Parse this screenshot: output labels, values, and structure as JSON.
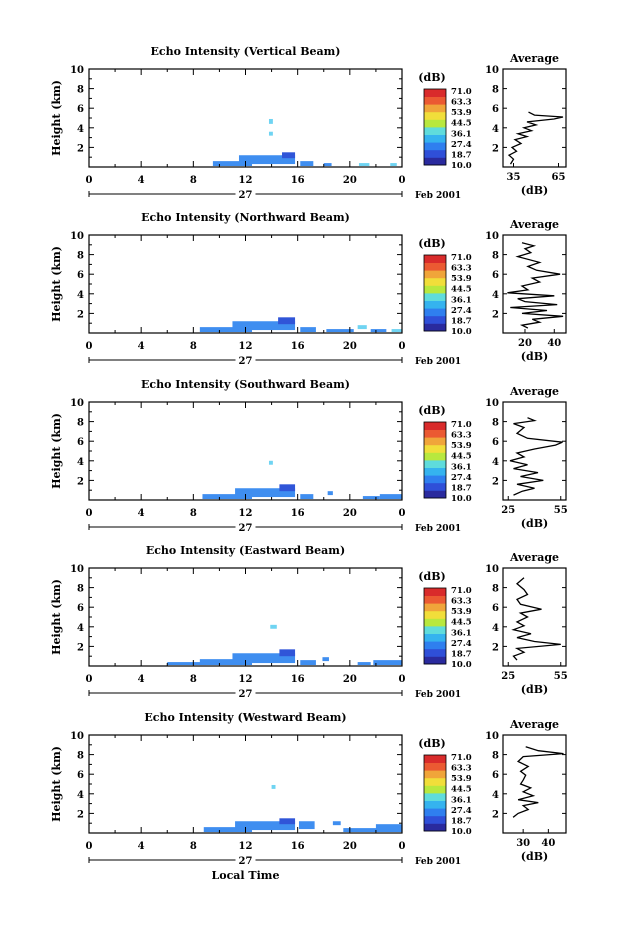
{
  "colors": {
    "colorbar": [
      "#2a2a9e",
      "#2f4fd8",
      "#2f7fef",
      "#35b3ef",
      "#5fdcdc",
      "#b8e83e",
      "#f1de3a",
      "#f0a53a",
      "#eb5a32",
      "#d92b2b"
    ],
    "echo_primary": "#3f8ef0",
    "echo_light": "#6fd4f2",
    "echo_dark": "#3055d8"
  },
  "x_axis": {
    "ticks": [
      "0",
      "4",
      "8",
      "12",
      "16",
      "20",
      "0"
    ],
    "day_label": "27",
    "date_label": "Feb 2001",
    "title": "Local Time"
  },
  "y_axis": {
    "label": "Height (km)",
    "ticks": [
      "2",
      "4",
      "6",
      "8",
      "10"
    ]
  },
  "colorbar": {
    "unit": "(dB)",
    "ticks": [
      "71.0",
      "63.3",
      "53.9",
      "44.5",
      "36.1",
      "27.4",
      "18.7",
      "10.0"
    ]
  },
  "average": {
    "title": "Average",
    "unit": "(dB)"
  },
  "chart_data": [
    {
      "type": "heatmap",
      "title": "Echo Intensity (Vertical Beam)",
      "xlabel": "",
      "ylabel": "Height (km)",
      "xlim": [
        0,
        24
      ],
      "ylim": [
        0,
        10
      ],
      "echo_blocks": [
        {
          "x0": 9.5,
          "x1": 12.5,
          "y0": 0.1,
          "y1": 0.6,
          "c": "primary"
        },
        {
          "x0": 11.5,
          "x1": 15.8,
          "y0": 0.3,
          "y1": 1.2,
          "c": "primary"
        },
        {
          "x0": 14.8,
          "x1": 15.8,
          "y0": 0.9,
          "y1": 1.5,
          "c": "dark"
        },
        {
          "x0": 13.8,
          "x1": 14.1,
          "y0": 4.4,
          "y1": 4.9,
          "c": "light"
        },
        {
          "x0": 13.8,
          "x1": 14.1,
          "y0": 3.2,
          "y1": 3.6,
          "c": "light"
        },
        {
          "x0": 16.2,
          "x1": 17.2,
          "y0": 0.1,
          "y1": 0.6,
          "c": "primary"
        },
        {
          "x0": 18.0,
          "x1": 18.6,
          "y0": 0.1,
          "y1": 0.4,
          "c": "primary"
        },
        {
          "x0": 20.7,
          "x1": 21.5,
          "y0": 0.1,
          "y1": 0.4,
          "c": "light"
        },
        {
          "x0": 23.1,
          "x1": 23.6,
          "y0": 0.1,
          "y1": 0.4,
          "c": "light"
        }
      ],
      "avg": {
        "xticks": [
          "35",
          "65"
        ],
        "xlim": [
          28,
          70
        ],
        "profile": [
          [
            33,
            0.3
          ],
          [
            35,
            0.8
          ],
          [
            32,
            1.2
          ],
          [
            37,
            1.6
          ],
          [
            34,
            2.0
          ],
          [
            40,
            2.4
          ],
          [
            36,
            2.8
          ],
          [
            44,
            3.1
          ],
          [
            38,
            3.4
          ],
          [
            47,
            3.7
          ],
          [
            42,
            4.0
          ],
          [
            50,
            4.3
          ],
          [
            44,
            4.6
          ],
          [
            62,
            4.9
          ],
          [
            68,
            5.1
          ],
          [
            49,
            5.3
          ],
          [
            45,
            5.6
          ]
        ]
      }
    },
    {
      "type": "heatmap",
      "title": "Echo Intensity (Northward Beam)",
      "xlabel": "",
      "ylabel": "Height (km)",
      "xlim": [
        0,
        24
      ],
      "ylim": [
        0,
        10
      ],
      "echo_blocks": [
        {
          "x0": 8.5,
          "x1": 12.5,
          "y0": 0.1,
          "y1": 0.6,
          "c": "primary"
        },
        {
          "x0": 11.0,
          "x1": 15.8,
          "y0": 0.3,
          "y1": 1.2,
          "c": "primary"
        },
        {
          "x0": 14.5,
          "x1": 15.8,
          "y0": 0.9,
          "y1": 1.6,
          "c": "dark"
        },
        {
          "x0": 16.2,
          "x1": 17.4,
          "y0": 0.1,
          "y1": 0.6,
          "c": "primary"
        },
        {
          "x0": 18.2,
          "x1": 20.3,
          "y0": 0.1,
          "y1": 0.4,
          "c": "primary"
        },
        {
          "x0": 20.6,
          "x1": 21.3,
          "y0": 0.4,
          "y1": 0.8,
          "c": "light"
        },
        {
          "x0": 21.6,
          "x1": 22.8,
          "y0": 0.1,
          "y1": 0.4,
          "c": "primary"
        },
        {
          "x0": 23.2,
          "x1": 24.0,
          "y0": 0.1,
          "y1": 0.4,
          "c": "light"
        }
      ],
      "avg": {
        "xticks": [
          "20",
          "40"
        ],
        "xlim": [
          5,
          48
        ],
        "profile": [
          [
            22,
            0.5
          ],
          [
            18,
            0.8
          ],
          [
            30,
            1.1
          ],
          [
            25,
            1.4
          ],
          [
            46,
            1.7
          ],
          [
            18,
            2.0
          ],
          [
            35,
            2.3
          ],
          [
            10,
            2.6
          ],
          [
            42,
            2.9
          ],
          [
            20,
            3.2
          ],
          [
            15,
            3.5
          ],
          [
            40,
            3.8
          ],
          [
            8,
            4.1
          ],
          [
            22,
            4.4
          ],
          [
            18,
            4.8
          ],
          [
            30,
            5.2
          ],
          [
            25,
            5.6
          ],
          [
            44,
            6.0
          ],
          [
            28,
            6.4
          ],
          [
            22,
            6.8
          ],
          [
            30,
            7.2
          ],
          [
            15,
            7.8
          ],
          [
            24,
            8.2
          ],
          [
            20,
            8.6
          ],
          [
            26,
            8.9
          ],
          [
            18,
            9.2
          ]
        ]
      }
    },
    {
      "type": "heatmap",
      "title": "Echo Intensity (Southward Beam)",
      "xlabel": "",
      "ylabel": "Height (km)",
      "xlim": [
        0,
        24
      ],
      "ylim": [
        0,
        10
      ],
      "echo_blocks": [
        {
          "x0": 8.7,
          "x1": 12.5,
          "y0": 0.1,
          "y1": 0.6,
          "c": "primary"
        },
        {
          "x0": 11.2,
          "x1": 15.8,
          "y0": 0.3,
          "y1": 1.2,
          "c": "primary"
        },
        {
          "x0": 14.6,
          "x1": 15.8,
          "y0": 0.9,
          "y1": 1.6,
          "c": "dark"
        },
        {
          "x0": 13.8,
          "x1": 14.1,
          "y0": 3.6,
          "y1": 4.0,
          "c": "light"
        },
        {
          "x0": 16.2,
          "x1": 17.2,
          "y0": 0.1,
          "y1": 0.6,
          "c": "primary"
        },
        {
          "x0": 18.3,
          "x1": 18.7,
          "y0": 0.5,
          "y1": 0.9,
          "c": "primary"
        },
        {
          "x0": 21.0,
          "x1": 22.3,
          "y0": 0.1,
          "y1": 0.4,
          "c": "primary"
        },
        {
          "x0": 22.3,
          "x1": 24.0,
          "y0": 0.1,
          "y1": 0.6,
          "c": "primary"
        }
      ],
      "avg": {
        "xticks": [
          "25",
          "55"
        ],
        "xlim": [
          22,
          58
        ],
        "profile": [
          [
            28,
            0.5
          ],
          [
            33,
            0.9
          ],
          [
            40,
            1.2
          ],
          [
            30,
            1.6
          ],
          [
            45,
            2.0
          ],
          [
            32,
            2.4
          ],
          [
            42,
            2.8
          ],
          [
            28,
            3.2
          ],
          [
            36,
            3.6
          ],
          [
            26,
            4.0
          ],
          [
            34,
            4.4
          ],
          [
            30,
            4.8
          ],
          [
            40,
            5.2
          ],
          [
            52,
            5.6
          ],
          [
            56,
            5.9
          ],
          [
            36,
            6.3
          ],
          [
            30,
            6.8
          ],
          [
            34,
            7.4
          ],
          [
            28,
            7.8
          ],
          [
            40,
            8.1
          ],
          [
            36,
            8.4
          ]
        ]
      }
    },
    {
      "type": "heatmap",
      "title": "Echo Intensity (Eastward Beam)",
      "xlabel": "",
      "ylabel": "Height (km)",
      "xlim": [
        0,
        24
      ],
      "ylim": [
        0,
        10
      ],
      "echo_blocks": [
        {
          "x0": 6.0,
          "x1": 9.0,
          "y0": 0.1,
          "y1": 0.4,
          "c": "primary"
        },
        {
          "x0": 8.5,
          "x1": 12.5,
          "y0": 0.1,
          "y1": 0.7,
          "c": "primary"
        },
        {
          "x0": 11.0,
          "x1": 15.8,
          "y0": 0.3,
          "y1": 1.3,
          "c": "primary"
        },
        {
          "x0": 14.6,
          "x1": 15.8,
          "y0": 1.0,
          "y1": 1.7,
          "c": "dark"
        },
        {
          "x0": 13.9,
          "x1": 14.4,
          "y0": 3.8,
          "y1": 4.2,
          "c": "light"
        },
        {
          "x0": 16.2,
          "x1": 17.4,
          "y0": 0.1,
          "y1": 0.6,
          "c": "primary"
        },
        {
          "x0": 17.9,
          "x1": 18.4,
          "y0": 0.5,
          "y1": 0.9,
          "c": "primary"
        },
        {
          "x0": 20.6,
          "x1": 21.6,
          "y0": 0.1,
          "y1": 0.4,
          "c": "primary"
        },
        {
          "x0": 21.8,
          "x1": 24.0,
          "y0": 0.1,
          "y1": 0.6,
          "c": "primary"
        }
      ],
      "avg": {
        "xticks": [
          "25",
          "55"
        ],
        "xlim": [
          22,
          58
        ],
        "profile": [
          [
            30,
            0.6
          ],
          [
            28,
            1.0
          ],
          [
            34,
            1.4
          ],
          [
            30,
            1.8
          ],
          [
            55,
            2.2
          ],
          [
            40,
            2.5
          ],
          [
            30,
            2.9
          ],
          [
            38,
            3.3
          ],
          [
            28,
            3.7
          ],
          [
            34,
            4.1
          ],
          [
            30,
            4.5
          ],
          [
            36,
            5.0
          ],
          [
            32,
            5.4
          ],
          [
            44,
            5.8
          ],
          [
            32,
            6.3
          ],
          [
            30,
            6.8
          ],
          [
            36,
            7.3
          ],
          [
            34,
            7.8
          ],
          [
            30,
            8.4
          ],
          [
            34,
            9.0
          ]
        ]
      }
    },
    {
      "type": "heatmap",
      "title": "Echo Intensity (Westward Beam)",
      "xlabel": "",
      "ylabel": "Height (km)",
      "xlim": [
        0,
        24
      ],
      "ylim": [
        0,
        10
      ],
      "echo_blocks": [
        {
          "x0": 8.8,
          "x1": 12.5,
          "y0": 0.1,
          "y1": 0.6,
          "c": "primary"
        },
        {
          "x0": 11.2,
          "x1": 15.8,
          "y0": 0.3,
          "y1": 1.2,
          "c": "primary"
        },
        {
          "x0": 14.6,
          "x1": 15.8,
          "y0": 0.9,
          "y1": 1.5,
          "c": "dark"
        },
        {
          "x0": 14.0,
          "x1": 14.3,
          "y0": 4.5,
          "y1": 4.9,
          "c": "light"
        },
        {
          "x0": 16.1,
          "x1": 17.3,
          "y0": 0.4,
          "y1": 1.2,
          "c": "primary"
        },
        {
          "x0": 18.7,
          "x1": 19.3,
          "y0": 0.8,
          "y1": 1.2,
          "c": "primary"
        },
        {
          "x0": 19.5,
          "x1": 24.0,
          "y0": 0.1,
          "y1": 0.5,
          "c": "primary"
        },
        {
          "x0": 22.0,
          "x1": 24.0,
          "y0": 0.4,
          "y1": 0.9,
          "c": "primary"
        }
      ],
      "avg": {
        "xticks": [
          "30",
          "40"
        ],
        "xlim": [
          22,
          47
        ],
        "profile": [
          [
            26,
            1.6
          ],
          [
            28,
            2.0
          ],
          [
            32,
            2.4
          ],
          [
            30,
            2.8
          ],
          [
            36,
            3.1
          ],
          [
            28,
            3.4
          ],
          [
            34,
            3.8
          ],
          [
            30,
            4.2
          ],
          [
            33,
            4.6
          ],
          [
            29,
            5.0
          ],
          [
            30,
            5.4
          ],
          [
            31,
            5.9
          ],
          [
            29,
            6.3
          ],
          [
            32,
            6.8
          ],
          [
            28,
            7.3
          ],
          [
            30,
            7.8
          ],
          [
            46,
            8.1
          ],
          [
            36,
            8.4
          ],
          [
            31,
            8.8
          ]
        ]
      }
    }
  ]
}
